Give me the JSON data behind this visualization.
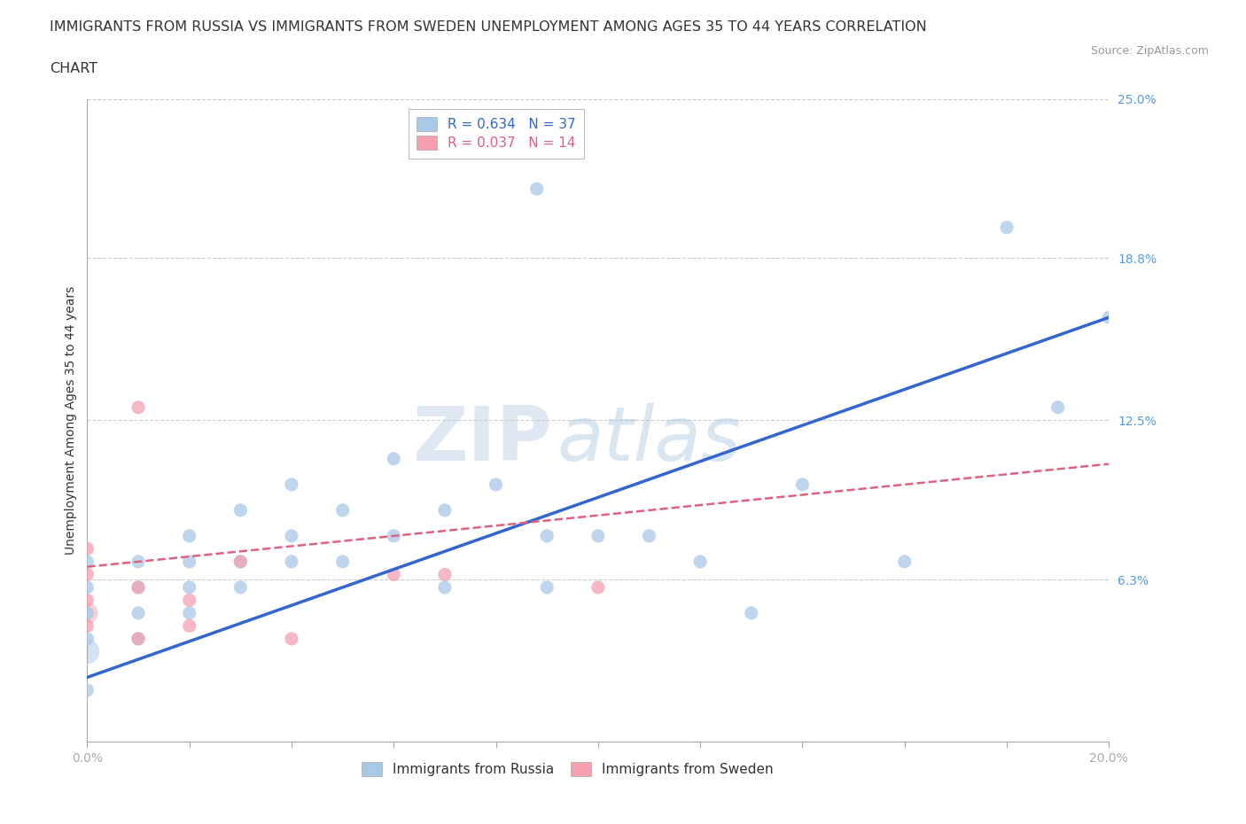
{
  "title_line1": "IMMIGRANTS FROM RUSSIA VS IMMIGRANTS FROM SWEDEN UNEMPLOYMENT AMONG AGES 35 TO 44 YEARS CORRELATION",
  "title_line2": "CHART",
  "source_text": "Source: ZipAtlas.com",
  "ylabel": "Unemployment Among Ages 35 to 44 years",
  "xmin": 0.0,
  "xmax": 0.2,
  "ymin": 0.0,
  "ymax": 0.25,
  "yticks": [
    0.0,
    0.063,
    0.125,
    0.188,
    0.25
  ],
  "ytick_labels": [
    "",
    "6.3%",
    "12.5%",
    "18.8%",
    "25.0%"
  ],
  "legend_r_russia": "R = 0.634",
  "legend_n_russia": "N = 37",
  "legend_r_sweden": "R = 0.037",
  "legend_n_sweden": "N = 14",
  "russia_color": "#a8c8e8",
  "sweden_color": "#f4a0b0",
  "russia_line_color": "#3366cc",
  "sweden_line_color": "#e06080",
  "background_color": "#ffffff",
  "grid_color": "#cccccc",
  "watermark_color": "#c8ddf0",
  "russia_scatter_x": [
    0.0,
    0.0,
    0.0,
    0.0,
    0.0,
    0.01,
    0.01,
    0.01,
    0.01,
    0.02,
    0.02,
    0.02,
    0.02,
    0.03,
    0.03,
    0.03,
    0.04,
    0.04,
    0.04,
    0.05,
    0.05,
    0.06,
    0.06,
    0.07,
    0.07,
    0.08,
    0.09,
    0.09,
    0.1,
    0.11,
    0.12,
    0.13,
    0.14,
    0.16,
    0.18,
    0.19,
    0.2
  ],
  "russia_scatter_y": [
    0.02,
    0.04,
    0.05,
    0.06,
    0.07,
    0.04,
    0.05,
    0.06,
    0.07,
    0.05,
    0.06,
    0.07,
    0.08,
    0.06,
    0.07,
    0.09,
    0.07,
    0.08,
    0.1,
    0.07,
    0.09,
    0.08,
    0.11,
    0.06,
    0.09,
    0.1,
    0.06,
    0.08,
    0.08,
    0.08,
    0.07,
    0.05,
    0.1,
    0.07,
    0.2,
    0.13,
    0.165
  ],
  "russia_outlier_x": [
    0.088
  ],
  "russia_outlier_y": [
    0.215
  ],
  "sweden_scatter_x": [
    0.0,
    0.0,
    0.0,
    0.0,
    0.01,
    0.01,
    0.01,
    0.02,
    0.02,
    0.03,
    0.04,
    0.06,
    0.07,
    0.1
  ],
  "sweden_scatter_y": [
    0.045,
    0.055,
    0.065,
    0.075,
    0.04,
    0.06,
    0.13,
    0.045,
    0.055,
    0.07,
    0.04,
    0.065,
    0.065,
    0.06
  ],
  "russia_trendline_x": [
    0.0,
    0.2
  ],
  "russia_trendline_y": [
    0.025,
    0.165
  ],
  "sweden_trendline_x": [
    0.0,
    0.2
  ],
  "sweden_trendline_y": [
    0.068,
    0.108
  ],
  "title_fontsize": 11.5,
  "axis_label_fontsize": 10,
  "tick_fontsize": 10,
  "legend_fontsize": 11,
  "marker_size": 120
}
